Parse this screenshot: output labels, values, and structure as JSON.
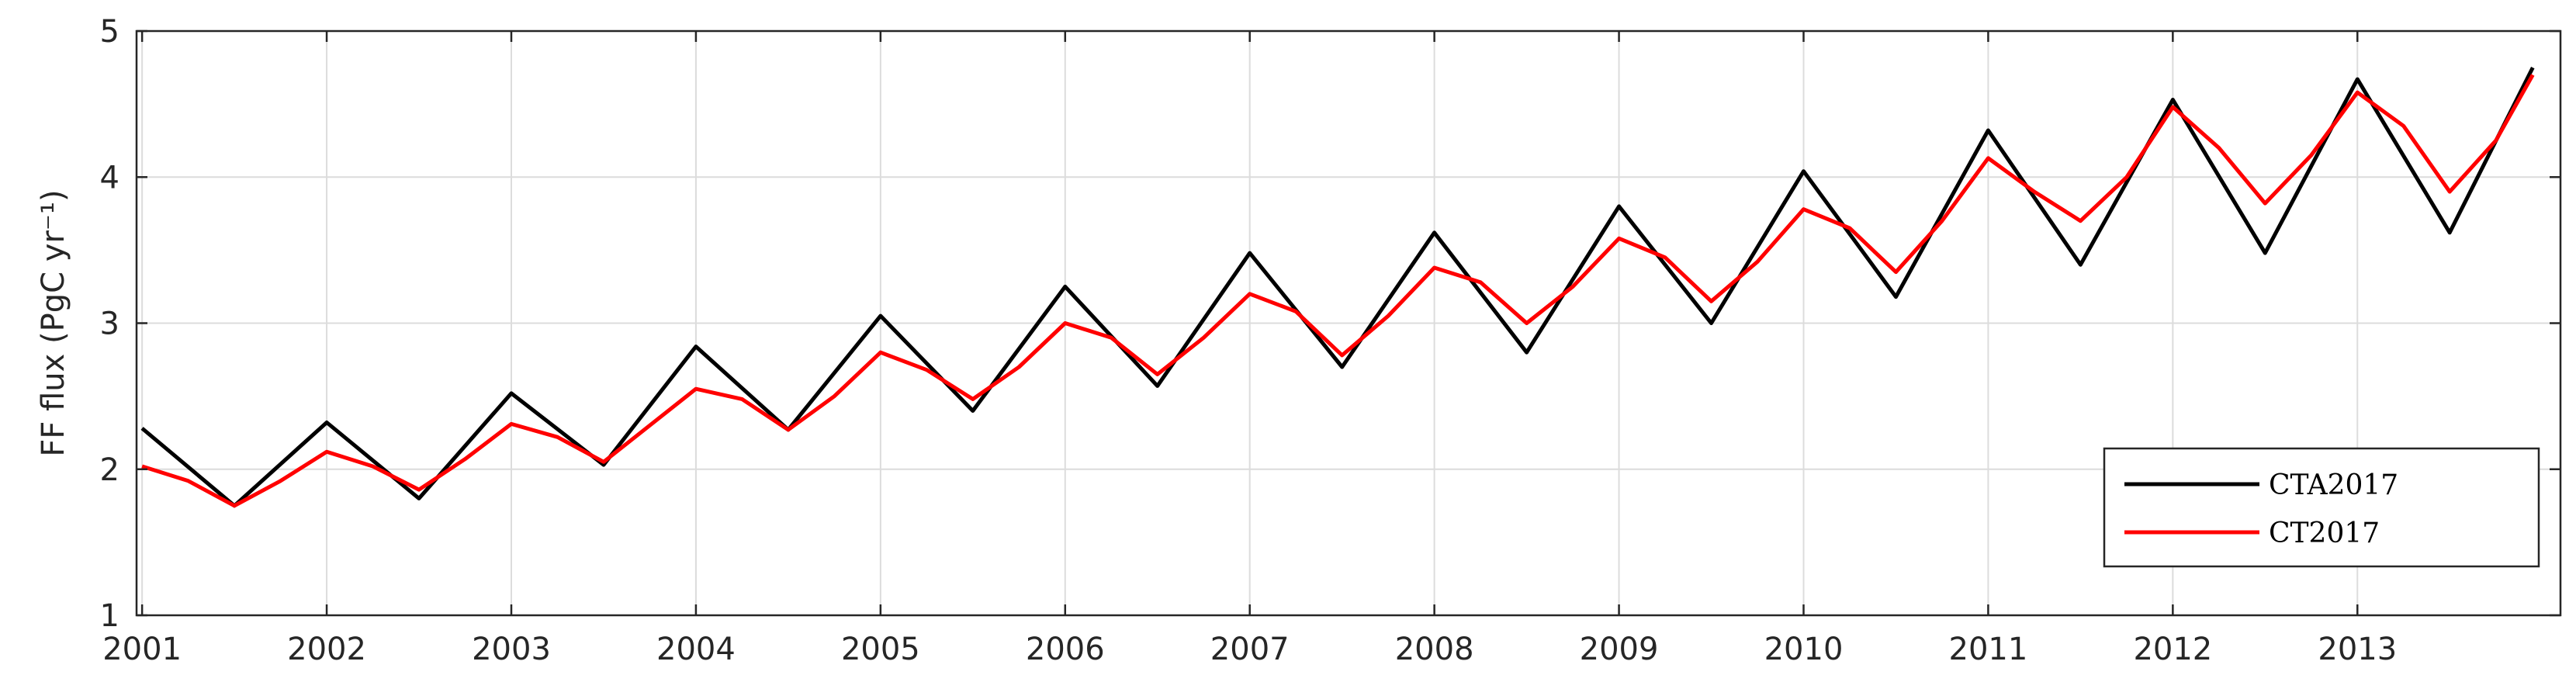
{
  "chart_data": {
    "type": "line",
    "xlabel": "",
    "ylabel": "FF flux (PgC yr⁻¹)",
    "xlim": [
      2000.97,
      2014.1
    ],
    "ylim": [
      1,
      5
    ],
    "x_ticks": [
      2001,
      2002,
      2003,
      2004,
      2005,
      2006,
      2007,
      2008,
      2009,
      2010,
      2011,
      2012,
      2013
    ],
    "x_tick_labels": [
      "2001",
      "2002",
      "2003",
      "2004",
      "2005",
      "2006",
      "2007",
      "2008",
      "2009",
      "2010",
      "2011",
      "2012",
      "2013"
    ],
    "y_ticks": [
      1,
      2,
      3,
      4,
      5
    ],
    "y_tick_labels": [
      "1",
      "2",
      "3",
      "4",
      "5"
    ],
    "grid": true,
    "legend_position": "bottom-right",
    "series": [
      {
        "name": "CTA2017",
        "color": "#000000",
        "x": [
          2001.0,
          2001.5,
          2002.0,
          2002.5,
          2003.0,
          2003.5,
          2004.0,
          2004.5,
          2005.0,
          2005.5,
          2006.0,
          2006.5,
          2007.0,
          2007.5,
          2008.0,
          2008.5,
          2009.0,
          2009.5,
          2010.0,
          2010.5,
          2011.0,
          2011.5,
          2012.0,
          2012.5,
          2013.0,
          2013.5,
          2013.95
        ],
        "y": [
          2.28,
          1.75,
          2.32,
          1.8,
          2.52,
          2.03,
          2.84,
          2.27,
          3.05,
          2.4,
          3.25,
          2.57,
          3.48,
          2.7,
          3.62,
          2.8,
          3.8,
          3.0,
          4.04,
          3.18,
          4.32,
          3.4,
          4.53,
          3.48,
          4.67,
          3.62,
          4.75
        ]
      },
      {
        "name": "CT2017",
        "color": "#ff0000",
        "x": [
          2001.0,
          2001.25,
          2001.5,
          2001.75,
          2002.0,
          2002.25,
          2002.5,
          2002.75,
          2003.0,
          2003.25,
          2003.5,
          2003.75,
          2004.0,
          2004.25,
          2004.5,
          2004.75,
          2005.0,
          2005.25,
          2005.5,
          2005.75,
          2006.0,
          2006.25,
          2006.5,
          2006.75,
          2007.0,
          2007.25,
          2007.5,
          2007.75,
          2008.0,
          2008.25,
          2008.5,
          2008.75,
          2009.0,
          2009.25,
          2009.5,
          2009.75,
          2010.0,
          2010.25,
          2010.5,
          2010.75,
          2011.0,
          2011.25,
          2011.5,
          2011.75,
          2012.0,
          2012.25,
          2012.5,
          2012.75,
          2013.0,
          2013.25,
          2013.5,
          2013.75,
          2013.95
        ],
        "y": [
          2.02,
          1.92,
          1.75,
          1.92,
          2.12,
          2.02,
          1.86,
          2.07,
          2.31,
          2.22,
          2.05,
          2.3,
          2.55,
          2.48,
          2.27,
          2.5,
          2.8,
          2.68,
          2.48,
          2.7,
          3.0,
          2.9,
          2.65,
          2.9,
          3.2,
          3.08,
          2.78,
          3.05,
          3.38,
          3.28,
          3.0,
          3.25,
          3.58,
          3.45,
          3.15,
          3.42,
          3.78,
          3.65,
          3.35,
          3.7,
          4.13,
          3.9,
          3.7,
          4.0,
          4.48,
          4.2,
          3.82,
          4.15,
          4.58,
          4.35,
          3.9,
          4.25,
          4.7
        ]
      }
    ]
  }
}
